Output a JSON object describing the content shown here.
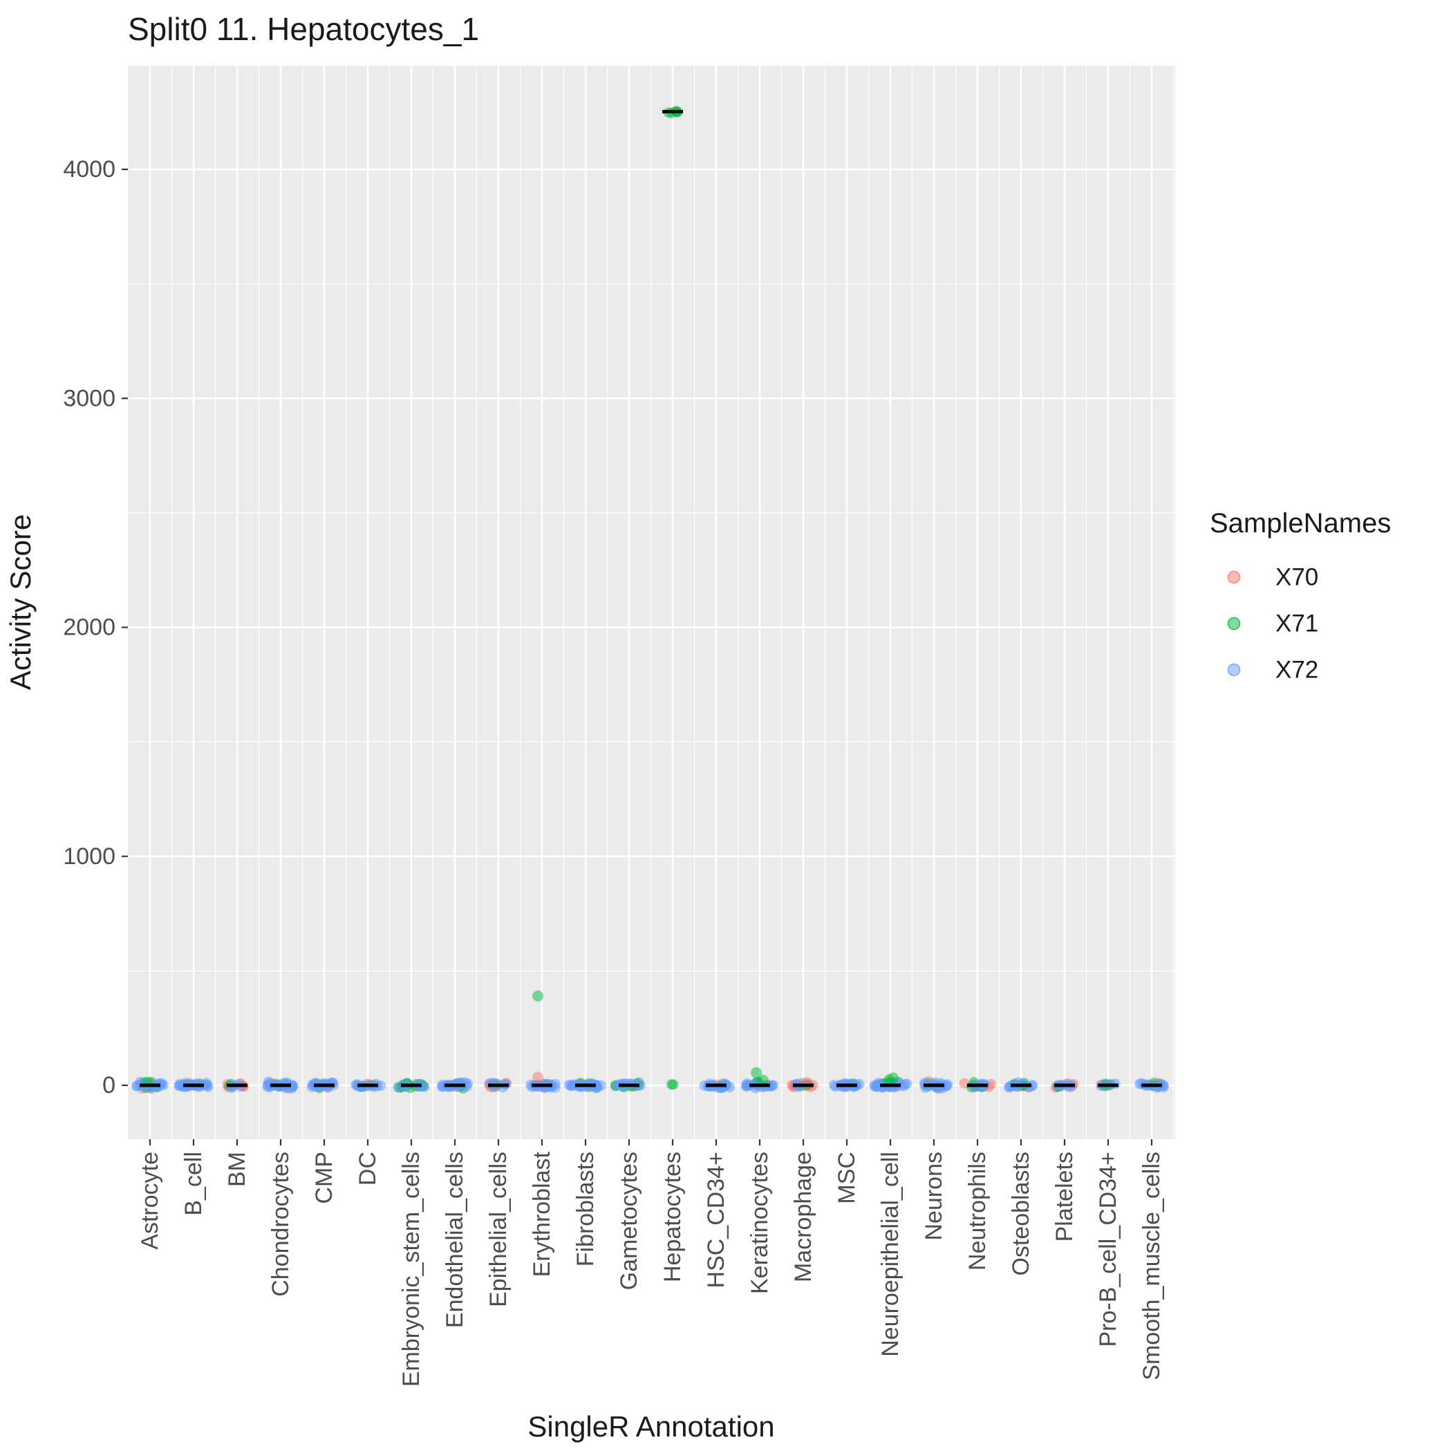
{
  "chart": {
    "title": "Split0 11. Hepatocytes_1",
    "xlabel": "SingleR Annotation",
    "ylabel": "Activity Score"
  },
  "legend": {
    "title": "SampleNames",
    "entries": [
      {
        "label": "X70",
        "color": "#F8766D"
      },
      {
        "label": "X71",
        "color": "#00BA38"
      },
      {
        "label": "X72",
        "color": "#619CFF"
      }
    ]
  },
  "chart_data": {
    "type": "scatter",
    "title": "Split0 11. Hepatocytes_1",
    "xlabel": "SingleR Annotation",
    "ylabel": "Activity Score",
    "panel_background": "#EBEBEB",
    "gridline_color": "#FFFFFF",
    "axis_text_color": "#4D4D4D",
    "ylim": [
      -235,
      4450
    ],
    "y_ticks": [
      0,
      1000,
      2000,
      3000,
      4000
    ],
    "y_minor_ticks": [
      500,
      1500,
      2500,
      3500
    ],
    "x_categories": [
      "Astrocyte",
      "B_cell",
      "BM",
      "Chondrocytes",
      "CMP",
      "DC",
      "Embryonic_stem_cells",
      "Endothelial_cells",
      "Epithelial_cells",
      "Erythroblast",
      "Fibroblasts",
      "Gametocytes",
      "Hepatocytes",
      "HSC_CD34+",
      "Keratinocytes",
      "Macrophage",
      "MSC",
      "Neuroepithelial_cell",
      "Neurons",
      "Neutrophils",
      "Osteoblasts",
      "Platelets",
      "Pro-B_cell_CD34+",
      "Smooth_muscle_cells"
    ],
    "series_colors": {
      "X70": "#F8766D",
      "X71": "#00BA38",
      "X72": "#619CFF"
    },
    "point_alpha": 0.5,
    "clusters": [
      {
        "c": "Astrocyte",
        "s": "X70",
        "n": 5,
        "y": 0,
        "sd": 20
      },
      {
        "c": "Astrocyte",
        "s": "X71",
        "n": 7,
        "y": 4,
        "sd": 22
      },
      {
        "c": "Astrocyte",
        "s": "X72",
        "n": 20,
        "y": 0,
        "sd": 18
      },
      {
        "c": "B_cell",
        "s": "X70",
        "n": 3,
        "y": 0,
        "sd": 18
      },
      {
        "c": "B_cell",
        "s": "X71",
        "n": 4,
        "y": 0,
        "sd": 18
      },
      {
        "c": "B_cell",
        "s": "X72",
        "n": 30,
        "y": 0,
        "sd": 18,
        "xw": 24
      },
      {
        "c": "BM",
        "s": "X70",
        "n": 7,
        "y": 0,
        "sd": 16,
        "xw": 14
      },
      {
        "c": "BM",
        "s": "X71",
        "n": 2,
        "y": 0,
        "sd": 14
      },
      {
        "c": "BM",
        "s": "X72",
        "n": 5,
        "y": 0,
        "sd": 16
      },
      {
        "c": "Chondrocytes",
        "s": "X70",
        "n": 3,
        "y": 0,
        "sd": 18
      },
      {
        "c": "Chondrocytes",
        "s": "X71",
        "n": 5,
        "y": 0,
        "sd": 18
      },
      {
        "c": "Chondrocytes",
        "s": "X72",
        "n": 24,
        "y": 0,
        "sd": 18
      },
      {
        "c": "CMP",
        "s": "X70",
        "n": 3,
        "y": 0,
        "sd": 18
      },
      {
        "c": "CMP",
        "s": "X71",
        "n": 4,
        "y": 0,
        "sd": 18
      },
      {
        "c": "CMP",
        "s": "X72",
        "n": 22,
        "y": 0,
        "sd": 18
      },
      {
        "c": "DC",
        "s": "X70",
        "n": 5,
        "y": 0,
        "sd": 16
      },
      {
        "c": "DC",
        "s": "X71",
        "n": 3,
        "y": 0,
        "sd": 16
      },
      {
        "c": "DC",
        "s": "X72",
        "n": 12,
        "y": 0,
        "sd": 16
      },
      {
        "c": "Embryonic_stem_cells",
        "s": "X70",
        "n": 2,
        "y": 0,
        "sd": 16
      },
      {
        "c": "Embryonic_stem_cells",
        "s": "X71",
        "n": 16,
        "y": 0,
        "sd": 20
      },
      {
        "c": "Embryonic_stem_cells",
        "s": "X72",
        "n": 8,
        "y": 0,
        "sd": 18
      },
      {
        "c": "Endothelial_cells",
        "s": "X70",
        "n": 3,
        "y": 0,
        "sd": 18
      },
      {
        "c": "Endothelial_cells",
        "s": "X71",
        "n": 7,
        "y": 0,
        "sd": 18
      },
      {
        "c": "Endothelial_cells",
        "s": "X72",
        "n": 20,
        "y": 0,
        "sd": 18
      },
      {
        "c": "Epithelial_cells",
        "s": "X70",
        "n": 9,
        "y": 0,
        "sd": 16,
        "xw": 14
      },
      {
        "c": "Epithelial_cells",
        "s": "X71",
        "n": 2,
        "y": 0,
        "sd": 14
      },
      {
        "c": "Epithelial_cells",
        "s": "X72",
        "n": 7,
        "y": 0,
        "sd": 16
      },
      {
        "c": "Erythroblast",
        "s": "X70",
        "n": 4,
        "y": 0,
        "sd": 18
      },
      {
        "c": "Erythroblast",
        "s": "X71",
        "n": 5,
        "y": 0,
        "sd": 18
      },
      {
        "c": "Erythroblast",
        "s": "X72",
        "n": 20,
        "y": 0,
        "sd": 18
      },
      {
        "c": "Fibroblasts",
        "s": "X70",
        "n": 3,
        "y": 0,
        "sd": 18
      },
      {
        "c": "Fibroblasts",
        "s": "X71",
        "n": 4,
        "y": 0,
        "sd": 18
      },
      {
        "c": "Fibroblasts",
        "s": "X72",
        "n": 26,
        "y": 0,
        "sd": 18,
        "xw": 24
      },
      {
        "c": "Gametocytes",
        "s": "X70",
        "n": 2,
        "y": 0,
        "sd": 16
      },
      {
        "c": "Gametocytes",
        "s": "X71",
        "n": 10,
        "y": 0,
        "sd": 18
      },
      {
        "c": "Gametocytes",
        "s": "X72",
        "n": 12,
        "y": 0,
        "sd": 18
      },
      {
        "c": "Hepatocytes",
        "s": "X71",
        "n": 2,
        "y": 6,
        "sd": 6,
        "xw": 8
      },
      {
        "c": "Hepatocytes",
        "s": "X71",
        "n": 6,
        "y": 4252,
        "sd": 14,
        "xw": 9
      },
      {
        "c": "HSC_CD34+",
        "s": "X70",
        "n": 3,
        "y": 0,
        "sd": 16
      },
      {
        "c": "HSC_CD34+",
        "s": "X71",
        "n": 3,
        "y": 0,
        "sd": 16
      },
      {
        "c": "HSC_CD34+",
        "s": "X72",
        "n": 18,
        "y": 0,
        "sd": 18
      },
      {
        "c": "Keratinocytes",
        "s": "X70",
        "n": 3,
        "y": 0,
        "sd": 16
      },
      {
        "c": "Keratinocytes",
        "s": "X71",
        "n": 5,
        "y": 8,
        "sd": 14
      },
      {
        "c": "Keratinocytes",
        "s": "X72",
        "n": 18,
        "y": 0,
        "sd": 18
      },
      {
        "c": "Macrophage",
        "s": "X70",
        "n": 13,
        "y": 0,
        "sd": 18,
        "xw": 18
      },
      {
        "c": "Macrophage",
        "s": "X71",
        "n": 2,
        "y": 0,
        "sd": 14
      },
      {
        "c": "Macrophage",
        "s": "X72",
        "n": 4,
        "y": 0,
        "sd": 16
      },
      {
        "c": "MSC",
        "s": "X70",
        "n": 2,
        "y": 0,
        "sd": 16
      },
      {
        "c": "MSC",
        "s": "X71",
        "n": 3,
        "y": 0,
        "sd": 16
      },
      {
        "c": "MSC",
        "s": "X72",
        "n": 22,
        "y": 0,
        "sd": 18
      },
      {
        "c": "Neuroepithelial_cell",
        "s": "X70",
        "n": 5,
        "y": 0,
        "sd": 18
      },
      {
        "c": "Neuroepithelial_cell",
        "s": "X71",
        "n": 7,
        "y": 10,
        "sd": 18
      },
      {
        "c": "Neuroepithelial_cell",
        "s": "X72",
        "n": 28,
        "y": 0,
        "sd": 18,
        "xw": 24
      },
      {
        "c": "Neurons",
        "s": "X70",
        "n": 5,
        "y": 0,
        "sd": 18
      },
      {
        "c": "Neurons",
        "s": "X71",
        "n": 3,
        "y": 0,
        "sd": 16
      },
      {
        "c": "Neurons",
        "s": "X72",
        "n": 18,
        "y": 0,
        "sd": 18
      },
      {
        "c": "Neutrophils",
        "s": "X70",
        "n": 9,
        "y": 0,
        "sd": 18
      },
      {
        "c": "Neutrophils",
        "s": "X71",
        "n": 7,
        "y": 0,
        "sd": 18
      },
      {
        "c": "Neutrophils",
        "s": "X72",
        "n": 7,
        "y": 0,
        "sd": 16
      },
      {
        "c": "Osteoblasts",
        "s": "X70",
        "n": 4,
        "y": 0,
        "sd": 16
      },
      {
        "c": "Osteoblasts",
        "s": "X71",
        "n": 6,
        "y": 0,
        "sd": 18
      },
      {
        "c": "Osteoblasts",
        "s": "X72",
        "n": 12,
        "y": 0,
        "sd": 18
      },
      {
        "c": "Platelets",
        "s": "X70",
        "n": 7,
        "y": 0,
        "sd": 16,
        "xw": 14
      },
      {
        "c": "Platelets",
        "s": "X71",
        "n": 2,
        "y": 0,
        "sd": 14
      },
      {
        "c": "Platelets",
        "s": "X72",
        "n": 7,
        "y": 0,
        "sd": 16
      },
      {
        "c": "Pro-B_cell_CD34+",
        "s": "X70",
        "n": 2,
        "y": 0,
        "sd": 14
      },
      {
        "c": "Pro-B_cell_CD34+",
        "s": "X71",
        "n": 5,
        "y": 0,
        "sd": 16,
        "xw": 10
      },
      {
        "c": "Pro-B_cell_CD34+",
        "s": "X72",
        "n": 4,
        "y": 0,
        "sd": 14
      },
      {
        "c": "Smooth_muscle_cells",
        "s": "X70",
        "n": 5,
        "y": 0,
        "sd": 18
      },
      {
        "c": "Smooth_muscle_cells",
        "s": "X71",
        "n": 3,
        "y": 0,
        "sd": 16
      },
      {
        "c": "Smooth_muscle_cells",
        "s": "X72",
        "n": 14,
        "y": 0,
        "sd": 18
      }
    ],
    "outliers": [
      {
        "c": "Erythroblast",
        "s": "X71",
        "y": 390
      },
      {
        "c": "Erythroblast",
        "s": "X70",
        "y": 35
      },
      {
        "c": "Keratinocytes",
        "s": "X71",
        "y": 55
      },
      {
        "c": "Keratinocytes",
        "s": "X71",
        "y": 22
      },
      {
        "c": "Neuroepithelial_cell",
        "s": "X71",
        "y": 32
      },
      {
        "c": "Neuroepithelial_cell",
        "s": "X71",
        "y": 24
      },
      {
        "c": "Astrocyte",
        "s": "X71",
        "y": 14
      },
      {
        "c": "Macrophage",
        "s": "X70",
        "y": 12
      }
    ],
    "median_bars": [
      {
        "c": "Astrocyte",
        "y": 0
      },
      {
        "c": "B_cell",
        "y": 0
      },
      {
        "c": "BM",
        "y": 0
      },
      {
        "c": "Chondrocytes",
        "y": 0
      },
      {
        "c": "CMP",
        "y": 0
      },
      {
        "c": "DC",
        "y": 0
      },
      {
        "c": "Embryonic_stem_cells",
        "y": 0
      },
      {
        "c": "Endothelial_cells",
        "y": 0
      },
      {
        "c": "Epithelial_cells",
        "y": 0
      },
      {
        "c": "Erythroblast",
        "y": 0
      },
      {
        "c": "Fibroblasts",
        "y": 0
      },
      {
        "c": "Gametocytes",
        "y": 0
      },
      {
        "c": "Hepatocytes",
        "y": 4252
      },
      {
        "c": "HSC_CD34+",
        "y": 0
      },
      {
        "c": "Keratinocytes",
        "y": 0
      },
      {
        "c": "Macrophage",
        "y": 0
      },
      {
        "c": "MSC",
        "y": 0
      },
      {
        "c": "Neuroepithelial_cell",
        "y": 0
      },
      {
        "c": "Neurons",
        "y": 0
      },
      {
        "c": "Neutrophils",
        "y": 0
      },
      {
        "c": "Osteoblasts",
        "y": 0
      },
      {
        "c": "Platelets",
        "y": 0
      },
      {
        "c": "Pro-B_cell_CD34+",
        "y": 0
      },
      {
        "c": "Smooth_muscle_cells",
        "y": 0
      }
    ]
  }
}
